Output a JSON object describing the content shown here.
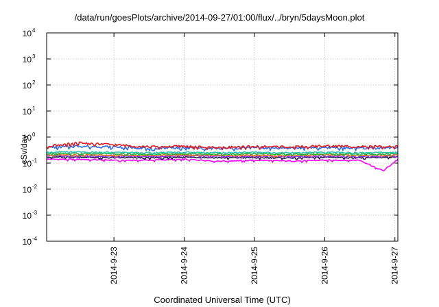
{
  "chart_data": {
    "type": "line",
    "title": "/data/run/goesPlots/archive/2014-09-27/01:00/flux/../bryn/5daysMoon.plot",
    "xlabel": "Coordinated Universal Time (UTC)",
    "ylabel": "cSv/day",
    "yscale": "log",
    "ylim": [
      0.0001,
      10000
    ],
    "y_ticks": [
      {
        "value": 0.0001,
        "base": "10",
        "exp": "-4"
      },
      {
        "value": 0.001,
        "base": "10",
        "exp": "-3"
      },
      {
        "value": 0.01,
        "base": "10",
        "exp": "-2"
      },
      {
        "value": 0.1,
        "base": "10",
        "exp": "-1"
      },
      {
        "value": 1,
        "base": "10",
        "exp": "0"
      },
      {
        "value": 10,
        "base": "10",
        "exp": "1"
      },
      {
        "value": 100,
        "base": "10",
        "exp": "2"
      },
      {
        "value": 1000,
        "base": "10",
        "exp": "3"
      },
      {
        "value": 10000,
        "base": "10",
        "exp": "4"
      }
    ],
    "xlim": [
      "2014-09-22T01:00",
      "2014-09-27T01:00"
    ],
    "x_ticks": [
      {
        "value": "2014-09-23T00:00",
        "label": "2014-9-23"
      },
      {
        "value": "2014-09-24T00:00",
        "label": "2014-9-24"
      },
      {
        "value": "2014-09-25T00:00",
        "label": "2014-9-25"
      },
      {
        "value": "2014-09-26T00:00",
        "label": "2014-9-26"
      },
      {
        "value": "2014-09-27T00:00",
        "label": "2014-9-27"
      }
    ],
    "grid": true,
    "series": [
      {
        "color": "#e4181c",
        "base": 0.46,
        "x": [
          "2014-09-22T01:00",
          "2014-09-22T12:00",
          "2014-09-23T00:00",
          "2014-09-23T12:00",
          "2014-09-24T00:00",
          "2014-09-24T12:00",
          "2014-09-25T00:00",
          "2014-09-25T12:00",
          "2014-09-26T00:00",
          "2014-09-26T12:00",
          "2014-09-27T01:00"
        ],
        "y": [
          0.45,
          0.6,
          0.5,
          0.42,
          0.44,
          0.4,
          0.43,
          0.42,
          0.45,
          0.43,
          0.44
        ]
      },
      {
        "color": "#2b6cf0",
        "base": 0.4,
        "x": [
          "2014-09-22T01:00",
          "2014-09-22T12:00",
          "2014-09-23T00:00",
          "2014-09-23T12:00",
          "2014-09-24T00:00",
          "2014-09-24T12:00",
          "2014-09-25T00:00",
          "2014-09-25T12:00",
          "2014-09-26T00:00",
          "2014-09-26T12:00",
          "2014-09-27T01:00"
        ],
        "y": [
          0.4,
          0.45,
          0.42,
          0.38,
          0.4,
          0.36,
          0.39,
          0.38,
          0.4,
          0.38,
          0.39
        ]
      },
      {
        "color": "#2ec1b0",
        "base": 0.26,
        "x": [
          "2014-09-22T01:00",
          "2014-09-22T12:00",
          "2014-09-23T00:00",
          "2014-09-23T12:00",
          "2014-09-24T00:00",
          "2014-09-24T12:00",
          "2014-09-25T00:00",
          "2014-09-25T12:00",
          "2014-09-26T00:00",
          "2014-09-26T12:00",
          "2014-09-27T01:00"
        ],
        "y": [
          0.26,
          0.27,
          0.26,
          0.25,
          0.26,
          0.25,
          0.26,
          0.25,
          0.26,
          0.25,
          0.26
        ]
      },
      {
        "color": "#27ae3c",
        "base": 0.23,
        "x": [
          "2014-09-22T01:00",
          "2014-09-22T12:00",
          "2014-09-23T00:00",
          "2014-09-23T12:00",
          "2014-09-24T00:00",
          "2014-09-24T12:00",
          "2014-09-25T00:00",
          "2014-09-25T12:00",
          "2014-09-26T00:00",
          "2014-09-26T12:00",
          "2014-09-27T01:00"
        ],
        "y": [
          0.23,
          0.24,
          0.23,
          0.22,
          0.23,
          0.22,
          0.23,
          0.22,
          0.23,
          0.22,
          0.23
        ]
      },
      {
        "color": "#e07b1e",
        "base": 0.21,
        "x": [
          "2014-09-22T01:00",
          "2014-09-22T12:00",
          "2014-09-23T00:00",
          "2014-09-23T12:00",
          "2014-09-24T00:00",
          "2014-09-24T12:00",
          "2014-09-25T00:00",
          "2014-09-25T12:00",
          "2014-09-26T00:00",
          "2014-09-26T12:00",
          "2014-09-27T01:00"
        ],
        "y": [
          0.21,
          0.21,
          0.2,
          0.2,
          0.21,
          0.2,
          0.2,
          0.2,
          0.21,
          0.2,
          0.21
        ]
      },
      {
        "color": "#8a2be2",
        "base": 0.19,
        "x": [
          "2014-09-22T01:00",
          "2014-09-22T12:00",
          "2014-09-23T00:00",
          "2014-09-23T12:00",
          "2014-09-24T00:00",
          "2014-09-24T12:00",
          "2014-09-25T00:00",
          "2014-09-25T12:00",
          "2014-09-26T00:00",
          "2014-09-26T12:00",
          "2014-09-27T01:00"
        ],
        "y": [
          0.19,
          0.19,
          0.18,
          0.18,
          0.19,
          0.18,
          0.18,
          0.18,
          0.19,
          0.18,
          0.19
        ]
      },
      {
        "color": "#1a1a4e",
        "base": 0.17,
        "x": [
          "2014-09-22T01:00",
          "2014-09-22T12:00",
          "2014-09-23T00:00",
          "2014-09-23T12:00",
          "2014-09-24T00:00",
          "2014-09-24T12:00",
          "2014-09-25T00:00",
          "2014-09-25T12:00",
          "2014-09-26T00:00",
          "2014-09-26T12:00",
          "2014-09-27T01:00"
        ],
        "y": [
          0.17,
          0.17,
          0.16,
          0.16,
          0.17,
          0.16,
          0.16,
          0.16,
          0.17,
          0.16,
          0.17
        ]
      },
      {
        "color": "#ff00ff",
        "base": 0.14,
        "x": [
          "2014-09-22T01:00",
          "2014-09-22T12:00",
          "2014-09-23T00:00",
          "2014-09-23T12:00",
          "2014-09-24T00:00",
          "2014-09-24T12:00",
          "2014-09-25T00:00",
          "2014-09-25T12:00",
          "2014-09-26T00:00",
          "2014-09-26T12:00",
          "2014-09-26T20:00",
          "2014-09-27T01:00"
        ],
        "y": [
          0.14,
          0.14,
          0.13,
          0.13,
          0.14,
          0.12,
          0.13,
          0.12,
          0.13,
          0.13,
          0.05,
          0.14
        ]
      }
    ]
  }
}
